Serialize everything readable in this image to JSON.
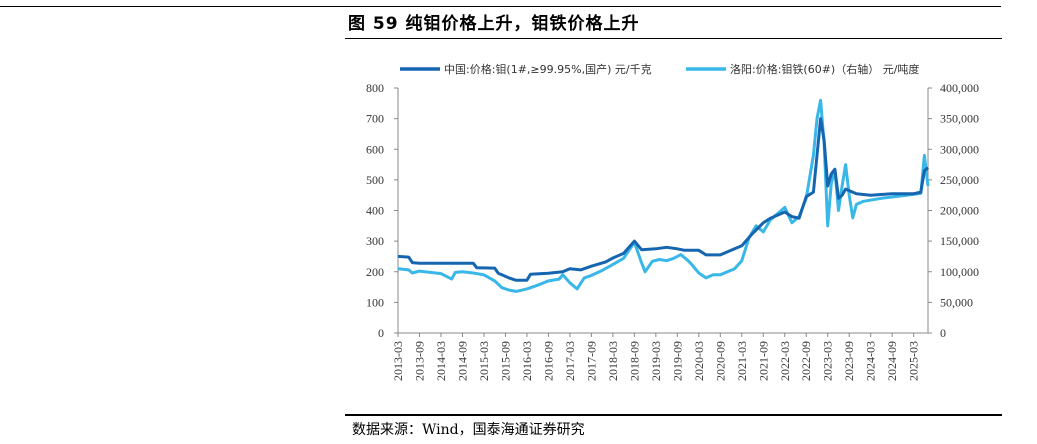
{
  "title": "图 59  纯钼价格上升，钼铁价格上升",
  "source": "数据来源：Wind，国泰海通证券研究",
  "chart_data": {
    "type": "line",
    "legend_position": "top",
    "grid": false,
    "x_labels": [
      "2013-03",
      "2013-09",
      "2014-03",
      "2014-09",
      "2015-03",
      "2015-09",
      "2016-03",
      "2016-09",
      "2017-03",
      "2017-09",
      "2018-03",
      "2018-09",
      "2019-03",
      "2019-09",
      "2020-03",
      "2020-09",
      "2021-03",
      "2021-09",
      "2022-03",
      "2022-09",
      "2023-03",
      "2023-09",
      "2024-03",
      "2024-09",
      "2025-03"
    ],
    "left_axis": {
      "ticks": [
        "0",
        "100",
        "200",
        "300",
        "400",
        "500",
        "600",
        "700",
        "800"
      ],
      "range": [
        0,
        800
      ]
    },
    "right_axis": {
      "ticks": [
        "0",
        "50,000",
        "100,000",
        "150,000",
        "200,000",
        "250,000",
        "300,000",
        "350,000",
        "400,000"
      ],
      "range": [
        0,
        400000
      ]
    },
    "series": [
      {
        "name": "中国:价格:钼(1#,≥99.95%,国产) 元/千克",
        "axis": "left",
        "color": "#1565b0",
        "points": [
          [
            "2013-03",
            250
          ],
          [
            "2013-06",
            248
          ],
          [
            "2013-07",
            230
          ],
          [
            "2013-09",
            228
          ],
          [
            "2014-03",
            228
          ],
          [
            "2014-09",
            228
          ],
          [
            "2014-12",
            228
          ],
          [
            "2015-01",
            213
          ],
          [
            "2015-06",
            212
          ],
          [
            "2015-07",
            195
          ],
          [
            "2015-10",
            180
          ],
          [
            "2015-12",
            172
          ],
          [
            "2016-03",
            172
          ],
          [
            "2016-04",
            192
          ],
          [
            "2016-09",
            195
          ],
          [
            "2017-01",
            200
          ],
          [
            "2017-03",
            210
          ],
          [
            "2017-06",
            206
          ],
          [
            "2017-09",
            218
          ],
          [
            "2018-01",
            232
          ],
          [
            "2018-03",
            245
          ],
          [
            "2018-06",
            260
          ],
          [
            "2018-09",
            300
          ],
          [
            "2018-11",
            272
          ],
          [
            "2019-03",
            275
          ],
          [
            "2019-06",
            280
          ],
          [
            "2019-09",
            275
          ],
          [
            "2019-11",
            270
          ],
          [
            "2020-03",
            270
          ],
          [
            "2020-05",
            255
          ],
          [
            "2020-09",
            255
          ],
          [
            "2021-01",
            275
          ],
          [
            "2021-03",
            285
          ],
          [
            "2021-06",
            325
          ],
          [
            "2021-09",
            360
          ],
          [
            "2021-11",
            375
          ],
          [
            "2022-01",
            385
          ],
          [
            "2022-03",
            395
          ],
          [
            "2022-05",
            380
          ],
          [
            "2022-07",
            375
          ],
          [
            "2022-09",
            445
          ],
          [
            "2022-11",
            460
          ],
          [
            "2022-12",
            580
          ],
          [
            "2023-01",
            700
          ],
          [
            "2023-02",
            630
          ],
          [
            "2023-03",
            480
          ],
          [
            "2023-04",
            520
          ],
          [
            "2023-05",
            535
          ],
          [
            "2023-06",
            440
          ],
          [
            "2023-07",
            450
          ],
          [
            "2023-08",
            470
          ],
          [
            "2023-09",
            465
          ],
          [
            "2023-11",
            455
          ],
          [
            "2024-03",
            450
          ],
          [
            "2024-09",
            455
          ],
          [
            "2025-03",
            455
          ],
          [
            "2025-05",
            460
          ],
          [
            "2025-06",
            530
          ],
          [
            "2025-07",
            540
          ]
        ]
      },
      {
        "name": "洛阳:价格:钼铁(60#)（右轴） 元/吨度",
        "axis": "right",
        "color": "#38b7e8",
        "points": [
          [
            "2013-03",
            105000
          ],
          [
            "2013-06",
            103000
          ],
          [
            "2013-07",
            98000
          ],
          [
            "2013-09",
            101000
          ],
          [
            "2013-12",
            99000
          ],
          [
            "2014-03",
            97000
          ],
          [
            "2014-06",
            88000
          ],
          [
            "2014-07",
            99000
          ],
          [
            "2014-09",
            100000
          ],
          [
            "2014-12",
            98000
          ],
          [
            "2015-03",
            95000
          ],
          [
            "2015-06",
            85000
          ],
          [
            "2015-08",
            74000
          ],
          [
            "2015-10",
            70000
          ],
          [
            "2015-12",
            68000
          ],
          [
            "2016-03",
            72000
          ],
          [
            "2016-06",
            78000
          ],
          [
            "2016-09",
            85000
          ],
          [
            "2016-12",
            88000
          ],
          [
            "2017-01",
            95000
          ],
          [
            "2017-03",
            82000
          ],
          [
            "2017-05",
            72000
          ],
          [
            "2017-07",
            90000
          ],
          [
            "2017-09",
            94000
          ],
          [
            "2017-12",
            102000
          ],
          [
            "2018-03",
            112000
          ],
          [
            "2018-06",
            122000
          ],
          [
            "2018-09",
            148000
          ],
          [
            "2018-11",
            115000
          ],
          [
            "2018-12",
            100000
          ],
          [
            "2019-02",
            117000
          ],
          [
            "2019-04",
            120000
          ],
          [
            "2019-06",
            118000
          ],
          [
            "2019-08",
            122000
          ],
          [
            "2019-10",
            128000
          ],
          [
            "2019-12",
            118000
          ],
          [
            "2020-01",
            112000
          ],
          [
            "2020-03",
            98000
          ],
          [
            "2020-05",
            90000
          ],
          [
            "2020-07",
            95000
          ],
          [
            "2020-09",
            95000
          ],
          [
            "2020-11",
            100000
          ],
          [
            "2021-01",
            105000
          ],
          [
            "2021-03",
            118000
          ],
          [
            "2021-05",
            155000
          ],
          [
            "2021-07",
            175000
          ],
          [
            "2021-09",
            165000
          ],
          [
            "2021-11",
            185000
          ],
          [
            "2022-01",
            195000
          ],
          [
            "2022-03",
            205000
          ],
          [
            "2022-05",
            180000
          ],
          [
            "2022-07",
            190000
          ],
          [
            "2022-09",
            220000
          ],
          [
            "2022-11",
            290000
          ],
          [
            "2022-12",
            350000
          ],
          [
            "2023-01",
            380000
          ],
          [
            "2023-02",
            310000
          ],
          [
            "2023-03",
            175000
          ],
          [
            "2023-04",
            245000
          ],
          [
            "2023-05",
            265000
          ],
          [
            "2023-06",
            200000
          ],
          [
            "2023-07",
            240000
          ],
          [
            "2023-08",
            275000
          ],
          [
            "2023-09",
            225000
          ],
          [
            "2023-10",
            188000
          ],
          [
            "2023-11",
            210000
          ],
          [
            "2024-01",
            215000
          ],
          [
            "2024-06",
            220000
          ],
          [
            "2025-01",
            225000
          ],
          [
            "2025-05",
            228000
          ],
          [
            "2025-06",
            290000
          ],
          [
            "2025-07",
            240000
          ]
        ]
      }
    ]
  }
}
